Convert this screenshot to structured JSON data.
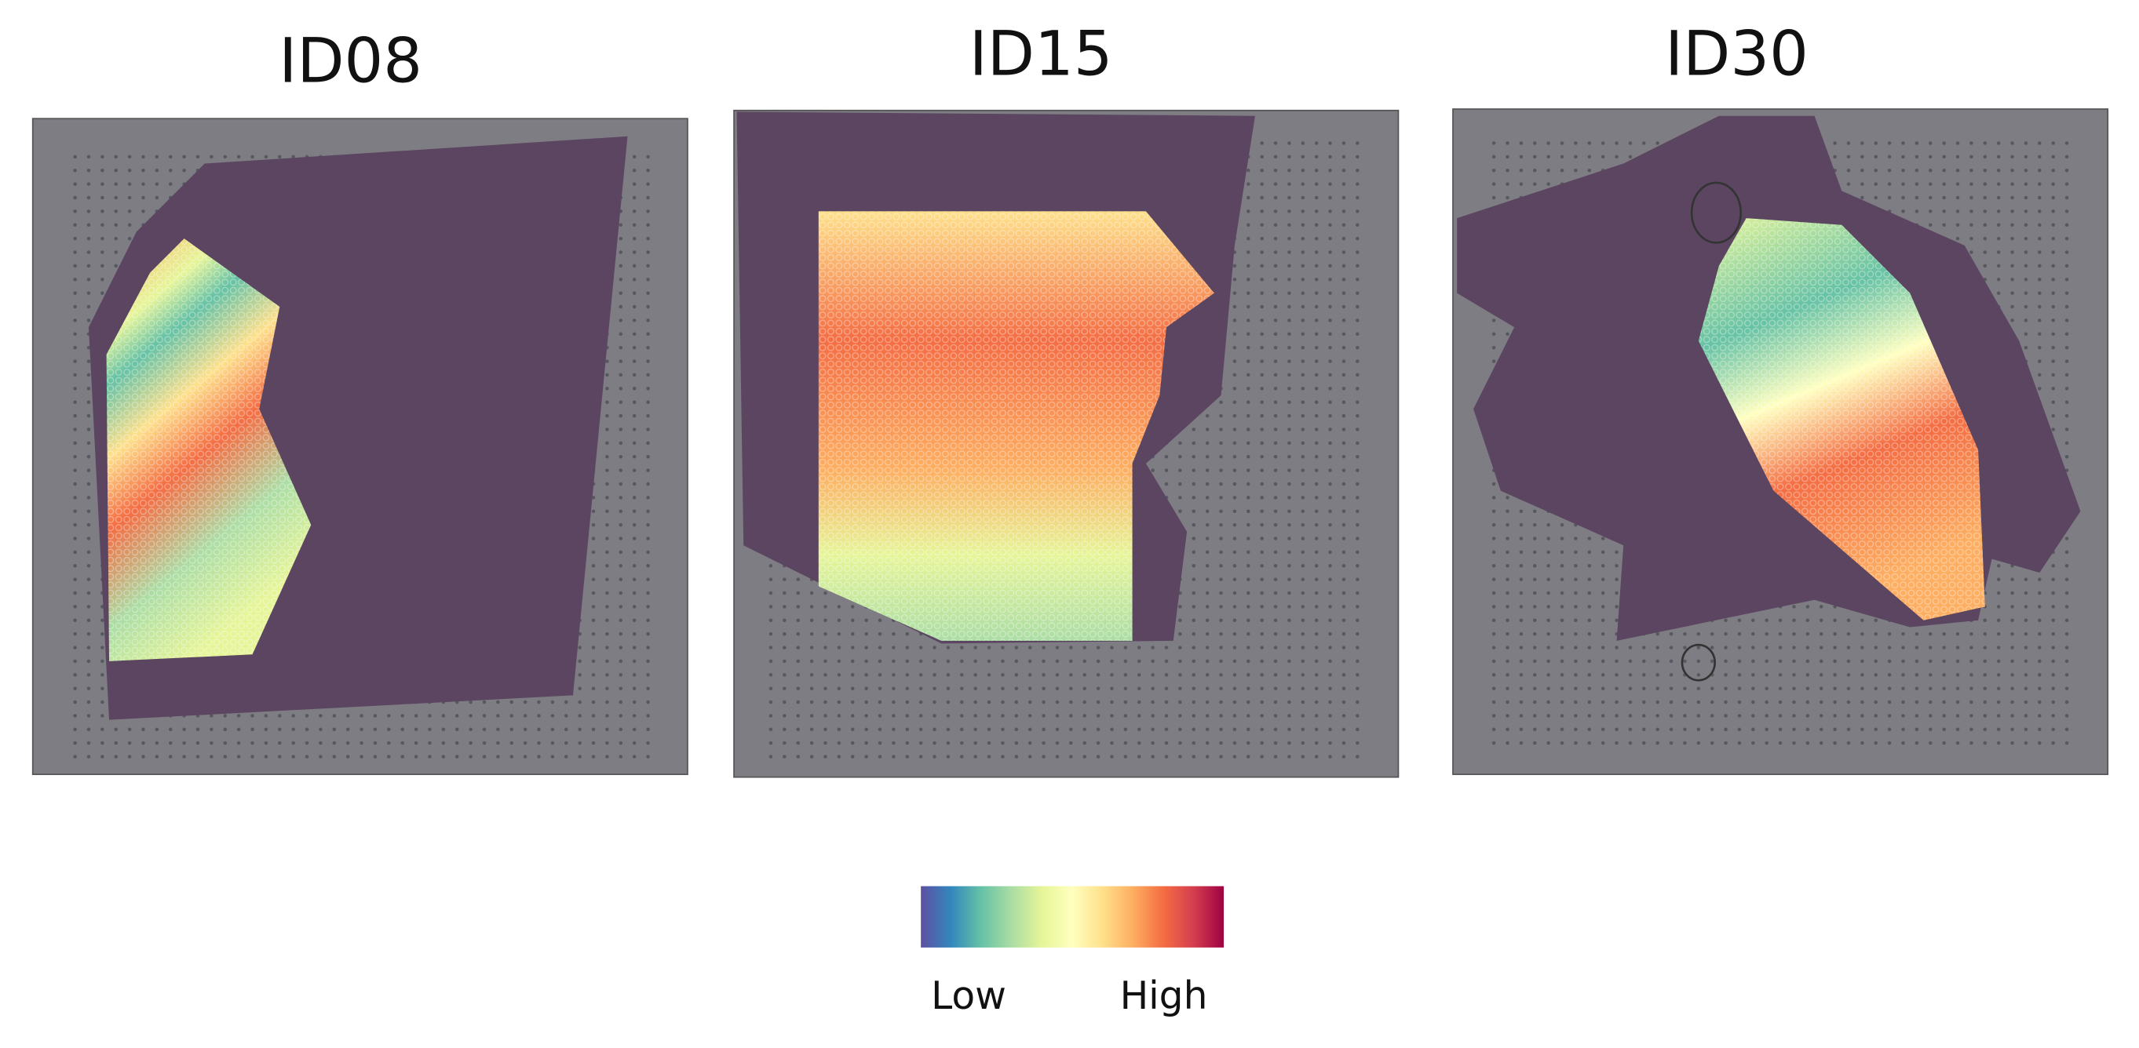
{
  "panels": [
    {
      "title": "ID08"
    },
    {
      "title": "ID15"
    },
    {
      "title": "ID30"
    }
  ],
  "colorbar": {
    "low": "Low",
    "high": "High"
  }
}
